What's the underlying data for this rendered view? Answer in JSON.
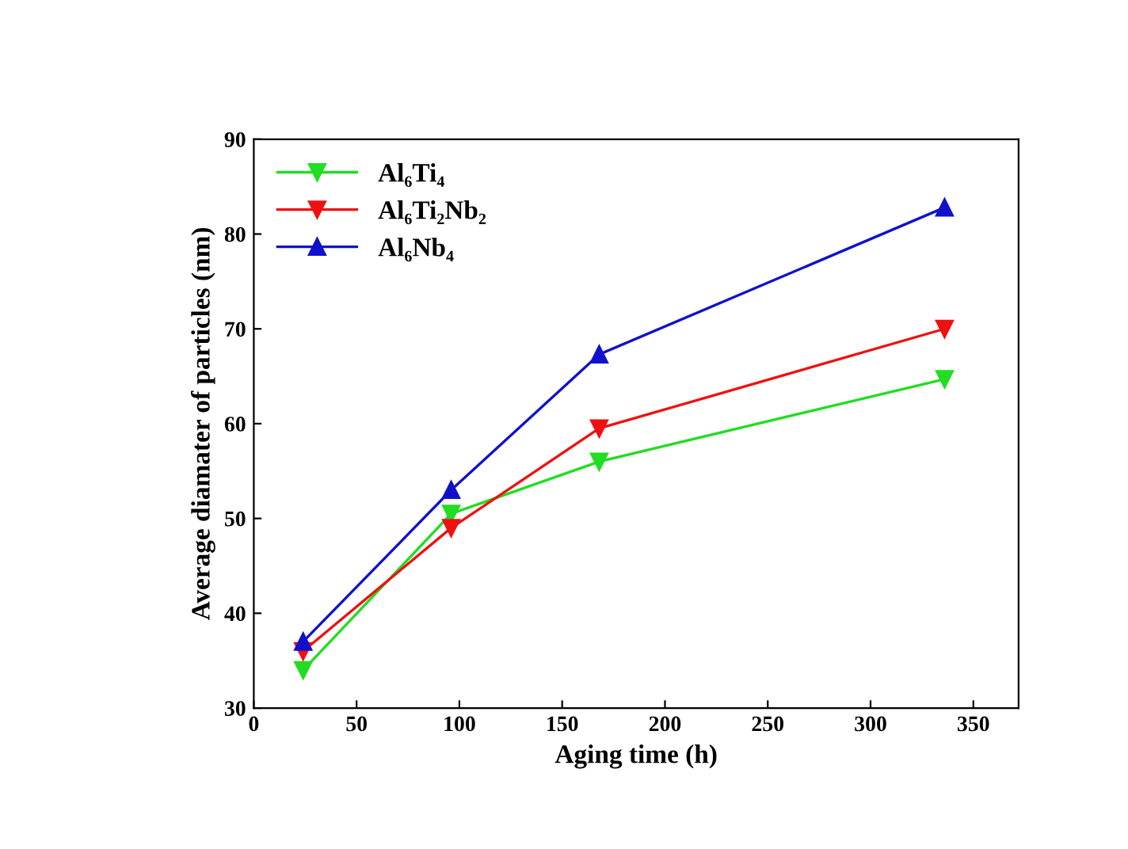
{
  "chart_data": {
    "type": "line",
    "xlabel": "Aging time (h)",
    "ylabel": "Average diamater of particles (nm)",
    "x": [
      24,
      96,
      168,
      336
    ],
    "series": [
      {
        "name": "Al₆Ti₄",
        "color": "#22dd22",
        "marker": "triangle_down",
        "values": [
          34,
          50.5,
          56,
          64.7
        ]
      },
      {
        "name": "Al₆Ti₂Nb₂",
        "color": "#ee1111",
        "marker": "triangle_down",
        "values": [
          36,
          49,
          59.5,
          70
        ]
      },
      {
        "name": "Al₆Nb₄",
        "color": "#1111cc",
        "marker": "triangle",
        "values": [
          37,
          53,
          67.3,
          82.8
        ]
      }
    ],
    "xlim": [
      0,
      372
    ],
    "xticks": [
      0,
      50,
      100,
      150,
      200,
      250,
      300,
      350
    ],
    "ylim": [
      30,
      90
    ],
    "yticks": [
      30,
      40,
      50,
      60,
      70,
      80,
      90
    ],
    "legend": "top left",
    "grid": false
  }
}
